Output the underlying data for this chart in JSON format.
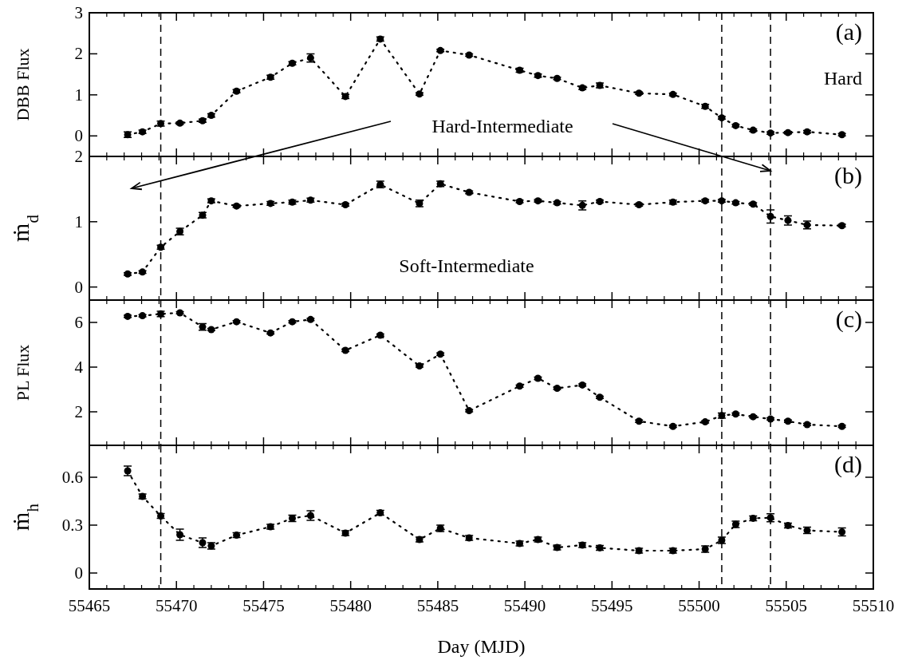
{
  "chart_data": [
    {
      "type": "line",
      "ylabel": "DBB Flux",
      "x": [
        55467.2,
        55468.05,
        55469.1,
        55470.2,
        55471.5,
        55472.0,
        55473.45,
        55475.4,
        55476.65,
        55477.7,
        55479.7,
        55481.7,
        55483.95,
        55485.15,
        55486.8,
        55489.7,
        55490.75,
        55491.85,
        55493.3,
        55494.3,
        55496.55,
        55498.5,
        55500.35,
        55501.3,
        55502.1,
        55503.1,
        55504.1,
        55505.1,
        55506.2,
        55508.2
      ],
      "series": [
        {
          "color": "#000000",
          "values": [
            0.03,
            0.1,
            0.3,
            0.31,
            0.37,
            0.5,
            1.09,
            1.43,
            1.77,
            1.9,
            0.96,
            2.36,
            1.02,
            2.08,
            1.97,
            1.6,
            1.47,
            1.4,
            1.17,
            1.23,
            1.04,
            1.01,
            0.72,
            0.44,
            0.25,
            0.14,
            0.07,
            0.08,
            0.1,
            0.03
          ],
          "errors": [
            0.07,
            0.04,
            0.06,
            0.03,
            0.04,
            0.04,
            0.04,
            0.05,
            0.04,
            0.1,
            0.05,
            0.05,
            0.03,
            0.03,
            0.03,
            0.05,
            0.04,
            0.03,
            0.04,
            0.06,
            0.03,
            0.03,
            0.05,
            0.03,
            0.03,
            0.03,
            0.03,
            0.03,
            0.03,
            0.03
          ]
        }
      ],
      "xlim": [
        55465,
        55510
      ],
      "xticks": [
        55465,
        55470,
        55475,
        55480,
        55485,
        55490,
        55495,
        55500,
        55505,
        55510
      ],
      "ylim": [
        -0.5,
        3
      ],
      "yticks": [
        0,
        1,
        2,
        3
      ],
      "tick_labels": "y",
      "marker": "circle",
      "line_style": "dotted",
      "ref_lines": [
        {
          "axis": "x",
          "value": 55469.1,
          "line_style": "dashed"
        },
        {
          "axis": "x",
          "value": 55501.3,
          "line_style": "dashed"
        },
        {
          "axis": "x",
          "value": 55504.1,
          "line_style": "dashed"
        }
      ],
      "annotations": [
        "(a)",
        "Hard",
        "Hard-Intermediate"
      ]
    },
    {
      "type": "line",
      "ylabel": "ṁ$_{d}$",
      "x": [
        55467.2,
        55468.05,
        55469.1,
        55470.2,
        55471.5,
        55472.0,
        55473.45,
        55475.4,
        55476.65,
        55477.7,
        55479.7,
        55481.7,
        55483.95,
        55485.15,
        55486.8,
        55489.7,
        55490.75,
        55491.85,
        55493.3,
        55494.3,
        55496.55,
        55498.5,
        55500.35,
        55501.3,
        55502.1,
        55503.1,
        55504.1,
        55505.1,
        55506.2,
        55508.2
      ],
      "series": [
        {
          "color": "#000000",
          "values": [
            0.2,
            0.23,
            0.61,
            0.85,
            1.1,
            1.32,
            1.24,
            1.28,
            1.3,
            1.33,
            1.26,
            1.57,
            1.28,
            1.58,
            1.45,
            1.31,
            1.32,
            1.29,
            1.25,
            1.31,
            1.26,
            1.3,
            1.32,
            1.32,
            1.29,
            1.27,
            1.08,
            1.02,
            0.95,
            0.94
          ],
          "errors": [
            0.02,
            0.02,
            0.03,
            0.05,
            0.04,
            0.03,
            0.02,
            0.03,
            0.03,
            0.03,
            0.02,
            0.05,
            0.05,
            0.04,
            0.02,
            0.02,
            0.02,
            0.02,
            0.07,
            0.02,
            0.02,
            0.03,
            0.02,
            0.02,
            0.02,
            0.02,
            0.1,
            0.07,
            0.06,
            0.02
          ]
        }
      ],
      "xlim": [
        55465,
        55510
      ],
      "xticks": [
        55465,
        55470,
        55475,
        55480,
        55485,
        55490,
        55495,
        55500,
        55505,
        55510
      ],
      "ylim": [
        -0.2,
        2
      ],
      "yticks": [
        0,
        1,
        2
      ],
      "tick_labels": "y",
      "marker": "circle",
      "line_style": "dotted",
      "ref_lines": [
        {
          "axis": "x",
          "value": 55469.1,
          "line_style": "dashed"
        },
        {
          "axis": "x",
          "value": 55501.3,
          "line_style": "dashed"
        },
        {
          "axis": "x",
          "value": 55504.1,
          "line_style": "dashed"
        }
      ],
      "annotations": [
        "(b)",
        "Soft-Intermediate"
      ]
    },
    {
      "type": "line",
      "ylabel": "PL Flux",
      "x": [
        55467.2,
        55468.05,
        55469.1,
        55470.2,
        55471.5,
        55472.0,
        55473.45,
        55475.4,
        55476.65,
        55477.7,
        55479.7,
        55481.7,
        55483.95,
        55485.15,
        55486.8,
        55489.7,
        55490.75,
        55491.85,
        55493.3,
        55494.3,
        55496.55,
        55498.5,
        55500.35,
        55501.3,
        55502.1,
        55503.1,
        55504.1,
        55505.1,
        55506.2,
        55508.2
      ],
      "series": [
        {
          "color": "#000000",
          "values": [
            6.27,
            6.3,
            6.38,
            6.43,
            5.8,
            5.68,
            6.03,
            5.53,
            6.03,
            6.13,
            4.75,
            5.43,
            4.05,
            4.58,
            2.05,
            3.15,
            3.5,
            3.05,
            3.2,
            2.65,
            1.58,
            1.35,
            1.55,
            1.83,
            1.9,
            1.78,
            1.68,
            1.58,
            1.43,
            1.35
          ],
          "errors": [
            0.05,
            0.05,
            0.12,
            0.05,
            0.15,
            0.05,
            0.05,
            0.05,
            0.05,
            0.05,
            0.05,
            0.05,
            0.05,
            0.05,
            0.05,
            0.05,
            0.05,
            0.05,
            0.05,
            0.05,
            0.05,
            0.05,
            0.05,
            0.12,
            0.05,
            0.05,
            0.05,
            0.05,
            0.05,
            0.05
          ]
        }
      ],
      "xlim": [
        55465,
        55510
      ],
      "xticks": [
        55465,
        55470,
        55475,
        55480,
        55485,
        55490,
        55495,
        55500,
        55505,
        55510
      ],
      "ylim": [
        0.5,
        7
      ],
      "yticks": [
        2,
        4,
        6
      ],
      "tick_labels": "y",
      "marker": "circle",
      "line_style": "dotted",
      "ref_lines": [
        {
          "axis": "x",
          "value": 55469.1,
          "line_style": "dashed"
        },
        {
          "axis": "x",
          "value": 55501.3,
          "line_style": "dashed"
        },
        {
          "axis": "x",
          "value": 55504.1,
          "line_style": "dashed"
        }
      ],
      "annotations": [
        "(c)"
      ]
    },
    {
      "type": "line",
      "ylabel": "ṁ$_{h}$",
      "xlabel": "Day (MJD)",
      "x": [
        55467.2,
        55468.05,
        55469.1,
        55470.2,
        55471.5,
        55472.0,
        55473.45,
        55475.4,
        55476.65,
        55477.7,
        55479.7,
        55481.7,
        55483.95,
        55485.15,
        55486.8,
        55489.7,
        55490.75,
        55491.85,
        55493.3,
        55494.3,
        55496.55,
        55498.5,
        55500.35,
        55501.3,
        55502.1,
        55503.1,
        55504.1,
        55505.1,
        55506.2,
        55508.2
      ],
      "series": [
        {
          "color": "#000000",
          "values": [
            0.64,
            0.48,
            0.357,
            0.24,
            0.19,
            0.17,
            0.237,
            0.29,
            0.343,
            0.36,
            0.25,
            0.377,
            0.21,
            0.28,
            0.22,
            0.185,
            0.21,
            0.16,
            0.175,
            0.158,
            0.14,
            0.14,
            0.15,
            0.205,
            0.305,
            0.343,
            0.346,
            0.298,
            0.267,
            0.257
          ],
          "errors": [
            0.03,
            0.015,
            0.015,
            0.035,
            0.03,
            0.02,
            0.015,
            0.015,
            0.02,
            0.03,
            0.015,
            0.015,
            0.015,
            0.02,
            0.015,
            0.015,
            0.015,
            0.015,
            0.015,
            0.015,
            0.015,
            0.015,
            0.02,
            0.02,
            0.02,
            0.015,
            0.025,
            0.015,
            0.02,
            0.025
          ]
        }
      ],
      "xlim": [
        55465,
        55510
      ],
      "xticks": [
        55465,
        55470,
        55475,
        55480,
        55485,
        55490,
        55495,
        55500,
        55505,
        55510
      ],
      "ylim": [
        -0.1,
        0.8
      ],
      "yticks": [
        0,
        0.3,
        0.6
      ],
      "marker": "circle",
      "line_style": "dotted",
      "ref_lines": [
        {
          "axis": "x",
          "value": 55469.1,
          "line_style": "dashed"
        },
        {
          "axis": "x",
          "value": 55501.3,
          "line_style": "dashed"
        },
        {
          "axis": "x",
          "value": 55504.1,
          "line_style": "dashed"
        }
      ],
      "annotations": [
        "(d)"
      ]
    }
  ]
}
